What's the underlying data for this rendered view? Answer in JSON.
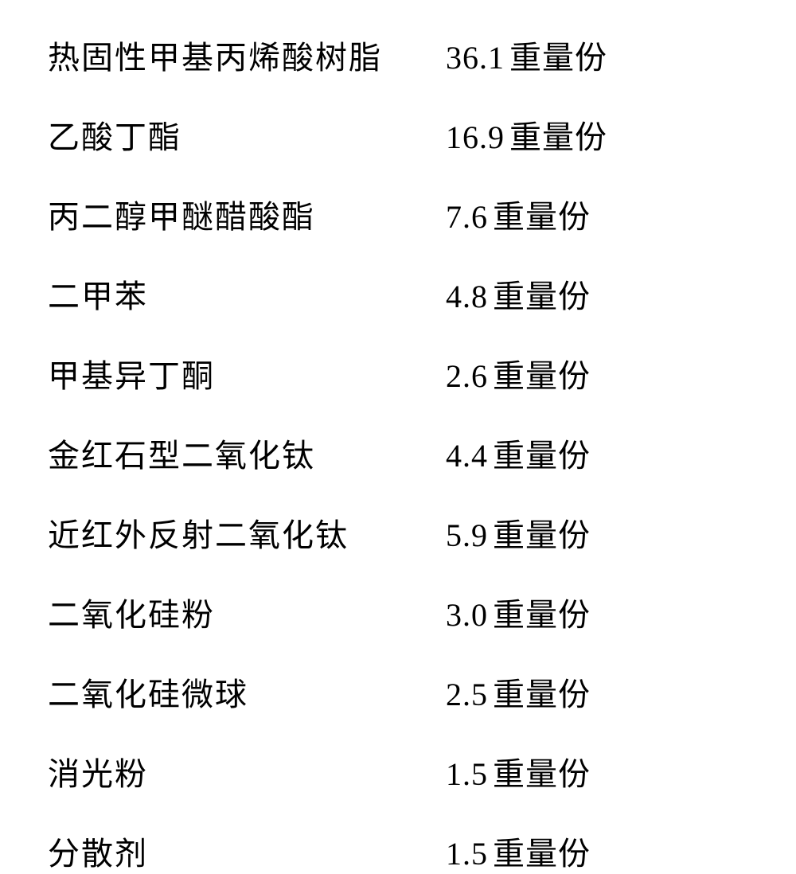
{
  "table": {
    "background_color": "#ffffff",
    "text_color": "#000000",
    "font_size_pt": 30,
    "font_family": "KaiTi",
    "unit_suffix": "重量份",
    "rows": [
      {
        "name": "热固性甲基丙烯酸树脂",
        "amount": "36.1"
      },
      {
        "name": "乙酸丁酯",
        "amount": "16.9"
      },
      {
        "name": "丙二醇甲醚醋酸酯",
        "amount": "7.6"
      },
      {
        "name": "二甲苯",
        "amount": "4.8"
      },
      {
        "name": "甲基异丁酮",
        "amount": "2.6"
      },
      {
        "name": "金红石型二氧化钛",
        "amount": "4.4"
      },
      {
        "name": "近红外反射二氧化钛",
        "amount": "5.9"
      },
      {
        "name": "二氧化硅粉",
        "amount": "3.0"
      },
      {
        "name": "二氧化硅微球",
        "amount": "2.5"
      },
      {
        "name": "消光粉",
        "amount": "1.5"
      },
      {
        "name": "分散剂",
        "amount": "1.5"
      }
    ]
  }
}
